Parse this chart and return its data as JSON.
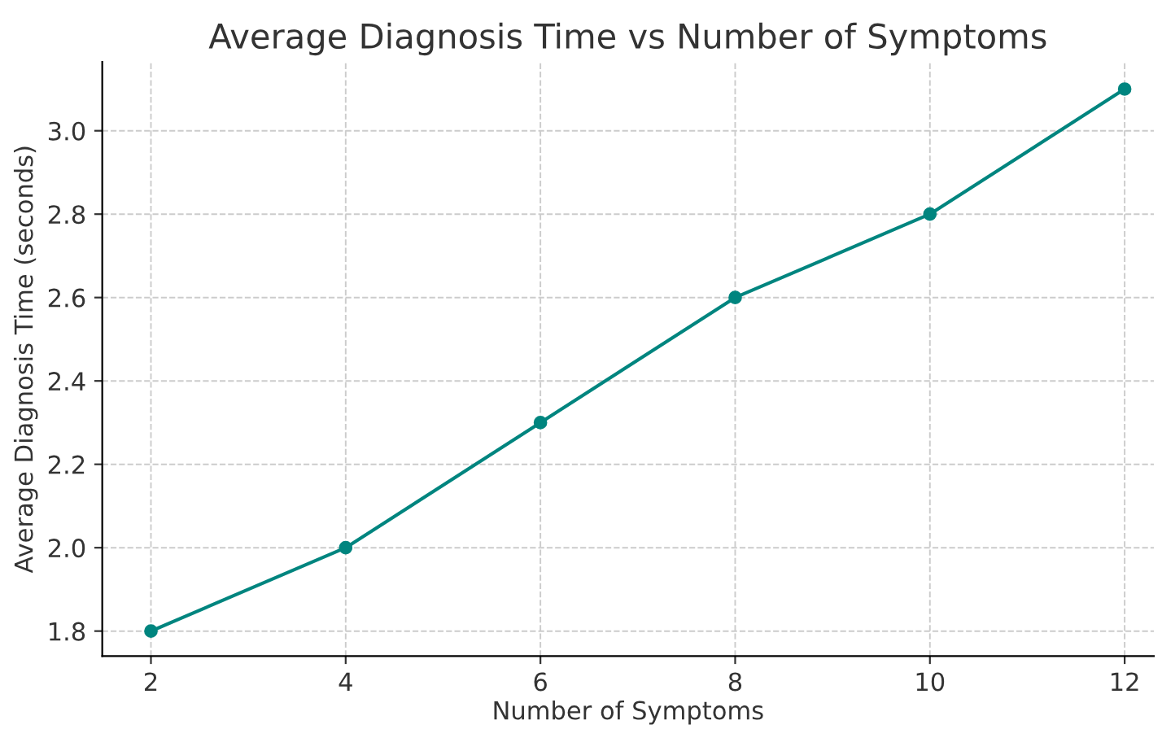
{
  "chart_data": {
    "type": "line",
    "title": "Average Diagnosis Time vs Number of Symptoms",
    "xlabel": "Number of Symptoms",
    "ylabel": "Average Diagnosis Time (seconds)",
    "x": [
      2,
      4,
      6,
      8,
      10,
      12
    ],
    "series": [
      {
        "color": "#00857f",
        "values": [
          1.8,
          2.0,
          2.3,
          2.6,
          2.8,
          3.1
        ]
      }
    ],
    "xlim": [
      1.5,
      12.3
    ],
    "xticks": [
      2,
      4,
      6,
      8,
      10,
      12
    ],
    "ylim": [
      1.74,
      3.165
    ],
    "yticks": [
      {
        "value": 1.8,
        "label": "1.8"
      },
      {
        "value": 2.0,
        "label": "2.0"
      },
      {
        "value": 2.2,
        "label": "2.2"
      },
      {
        "value": 2.4,
        "label": "2.4"
      },
      {
        "value": 2.6,
        "label": "2.6"
      },
      {
        "value": 2.8,
        "label": "2.8"
      },
      {
        "value": 3.0,
        "label": "3.0"
      }
    ],
    "grid": true,
    "marker": "circle",
    "line_style": "solid"
  }
}
